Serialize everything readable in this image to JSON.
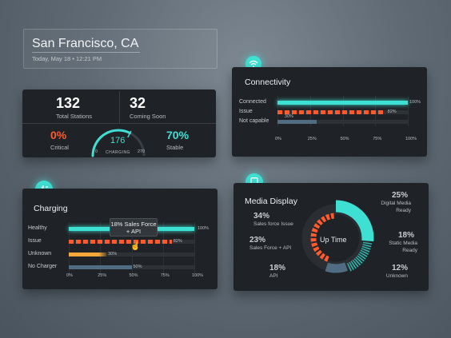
{
  "location": {
    "city": "San Francisco, CA",
    "datetime": "Today, May 18 • 12:21 PM"
  },
  "stations": {
    "total_value": "132",
    "total_label": "Total Stations",
    "soon_value": "32",
    "soon_label": "Coming Soon",
    "critical_value": "0%",
    "critical_label": "Critical",
    "stable_value": "70%",
    "stable_label": "Stable",
    "gauge_value": "176",
    "gauge_min": "0",
    "gauge_max": "270",
    "gauge_label": "CHARGING",
    "gauge_fraction": 0.65
  },
  "connectivity": {
    "title": "Connectivity",
    "rows": [
      {
        "label": "Connected",
        "value": "100%",
        "fraction": 1.0
      },
      {
        "label": "Issue",
        "value": "82%",
        "fraction": 0.82
      },
      {
        "label": "Not capable",
        "value": "30%",
        "fraction": 0.3
      }
    ],
    "ticks": [
      "0%",
      "25%",
      "50%",
      "75%",
      "100%"
    ]
  },
  "charging": {
    "title": "Charging",
    "tooltip": "18% Sales Force + API",
    "rows": [
      {
        "label": "Healthy",
        "value": "100%",
        "fraction": 1.0
      },
      {
        "label": "Issue",
        "value": "82%",
        "fraction": 0.82
      },
      {
        "label": "Unknown",
        "value": "30%",
        "fraction": 0.3
      },
      {
        "label": "No Charger",
        "value": "50%",
        "fraction": 0.5
      }
    ],
    "ticks": [
      "0%",
      "25%",
      "50%",
      "75%",
      "100%"
    ]
  },
  "media": {
    "title": "Media Display",
    "center_label": "Up Time",
    "left": [
      {
        "pct": "34%",
        "label": "Sales force Issue"
      },
      {
        "pct": "23%",
        "label": "Sales Force + API"
      },
      {
        "pct": "18%",
        "label": "API"
      }
    ],
    "right": [
      {
        "pct": "25%",
        "label_line1": "Digital Media",
        "label_line2": "Ready"
      },
      {
        "pct": "18%",
        "label_line1": "Static Media",
        "label_line2": "Ready"
      },
      {
        "pct": "12%",
        "label_line1": "Unknown",
        "label_line2": ""
      }
    ]
  },
  "colors": {
    "teal": "#3fe0d4",
    "orange": "#ff5a2b",
    "yellow": "#f4a83a",
    "slate": "#4f6c82"
  }
}
